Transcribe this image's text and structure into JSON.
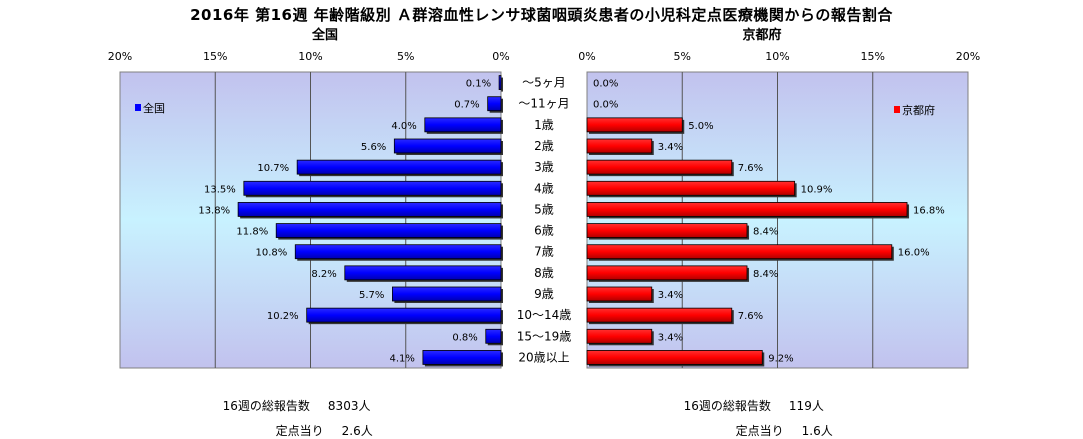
{
  "title": "2016年 第16週 年齢階級別 Ａ群溶血性レンサ球菌咽頭炎患者の小児科定点医療機関からの報告割合",
  "chart_data": {
    "type": "bar",
    "orientation": "horizontal",
    "categories": [
      "～5ヶ月",
      "～11ヶ月",
      "1歳",
      "2歳",
      "3歳",
      "4歳",
      "5歳",
      "6歳",
      "7歳",
      "8歳",
      "9歳",
      "10～14歳",
      "15～19歳",
      "20歳以上"
    ],
    "series": [
      {
        "name": "全国",
        "color": "#0000ff",
        "values": [
          0.1,
          0.7,
          4.0,
          5.6,
          10.7,
          13.5,
          13.8,
          11.8,
          10.8,
          8.2,
          5.7,
          10.2,
          0.8,
          4.1
        ],
        "labels": [
          "0.1%",
          "0.7%",
          "4.0%",
          "5.6%",
          "10.7%",
          "13.5%",
          "13.8%",
          "11.8%",
          "10.8%",
          "8.2%",
          "5.7%",
          "10.2%",
          "0.8%",
          "4.1%"
        ]
      },
      {
        "name": "京都府",
        "color": "#ff0000",
        "values": [
          0.0,
          0.0,
          5.0,
          3.4,
          7.6,
          10.9,
          16.8,
          8.4,
          16.0,
          8.4,
          3.4,
          7.6,
          3.4,
          9.2
        ],
        "labels": [
          "0.0%",
          "0.0%",
          "5.0%",
          "3.4%",
          "7.6%",
          "10.9%",
          "16.8%",
          "8.4%",
          "16.0%",
          "8.4%",
          "3.4%",
          "7.6%",
          "3.4%",
          "9.2%"
        ]
      }
    ],
    "panels": [
      {
        "title": "全国",
        "xlim": [
          0,
          20
        ],
        "direction": "reversed",
        "legend": "全国"
      },
      {
        "title": "京都府",
        "xlim": [
          0,
          20
        ],
        "direction": "normal",
        "legend": "京都府"
      }
    ],
    "ticks": [
      "0%",
      "5%",
      "10%",
      "15%",
      "20%"
    ],
    "tick_values": [
      0,
      5,
      10,
      15,
      20
    ],
    "grid": true,
    "legend_placement": "top-left / top-right"
  },
  "footer": {
    "left": {
      "total_label": "16週の総報告数",
      "total_value": "8303人",
      "per_label": "定点当り",
      "per_value": "2.6人"
    },
    "right": {
      "total_label": "16週の総報告数",
      "total_value": "119人",
      "per_label": "定点当り",
      "per_value": "1.6人"
    }
  }
}
